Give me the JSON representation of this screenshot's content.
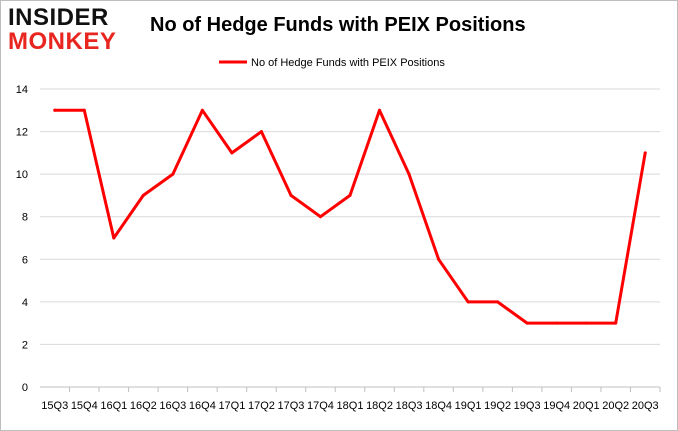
{
  "logo": {
    "line1": "INSIDER",
    "line2": "MONKEY"
  },
  "colors": {
    "series": "#ff0000",
    "grid": "#d9d9d9",
    "axis": "#bfbfbf",
    "logo_accent": "#e8251f"
  },
  "chart_data": {
    "type": "line",
    "title": "No of Hedge Funds with PEIX Positions",
    "xlabel": "",
    "ylabel": "",
    "categories": [
      "15Q3",
      "15Q4",
      "16Q1",
      "16Q2",
      "16Q3",
      "16Q4",
      "17Q1",
      "17Q2",
      "17Q3",
      "17Q4",
      "18Q1",
      "18Q2",
      "18Q3",
      "18Q4",
      "19Q1",
      "19Q2",
      "19Q3",
      "19Q4",
      "20Q1",
      "20Q2",
      "20Q3"
    ],
    "series": [
      {
        "name": "No of Hedge Funds with PEIX Positions",
        "values": [
          13,
          13,
          7,
          9,
          10,
          13,
          11,
          12,
          9,
          8,
          9,
          13,
          10,
          6,
          4,
          4,
          3,
          3,
          3,
          3,
          11
        ]
      }
    ],
    "ylim": [
      0,
      14
    ],
    "yticks": [
      0,
      2,
      4,
      6,
      8,
      10,
      12,
      14
    ],
    "grid": true,
    "legend": "top-center"
  }
}
